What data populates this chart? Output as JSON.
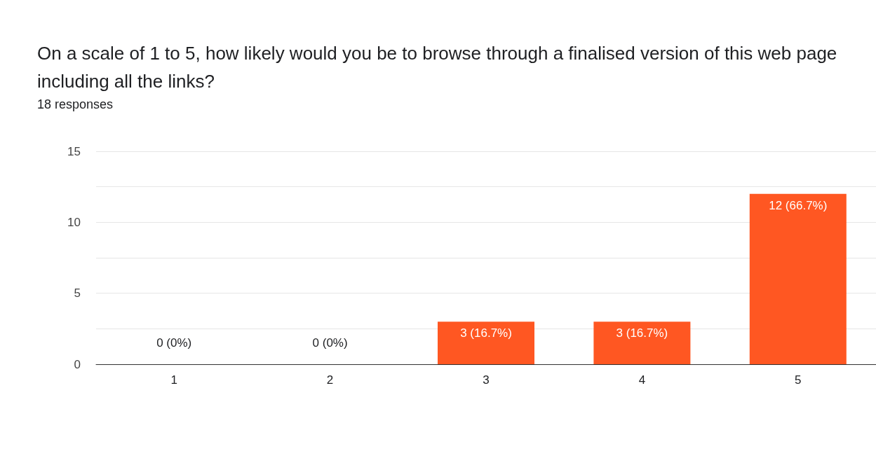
{
  "chart_data": {
    "type": "bar",
    "title": "On a scale of 1 to 5, how likely would you be to browse through a finalised version of this web page including all the links?",
    "subtitle": "18 responses",
    "categories": [
      "1",
      "2",
      "3",
      "4",
      "5"
    ],
    "values": [
      0,
      0,
      3,
      3,
      12
    ],
    "value_labels": [
      "0 (0%)",
      "0 (0%)",
      "3 (16.7%)",
      "3 (16.7%)",
      "12 (66.7%)"
    ],
    "color": "#ff5722",
    "ylim": [
      0,
      15
    ],
    "yticks": [
      0,
      {
        "value": 2.5,
        "label": null
      },
      5,
      {
        "value": 7.5,
        "label": null
      },
      10,
      {
        "value": 12.5,
        "label": null
      },
      15
    ],
    "grid": "y"
  }
}
